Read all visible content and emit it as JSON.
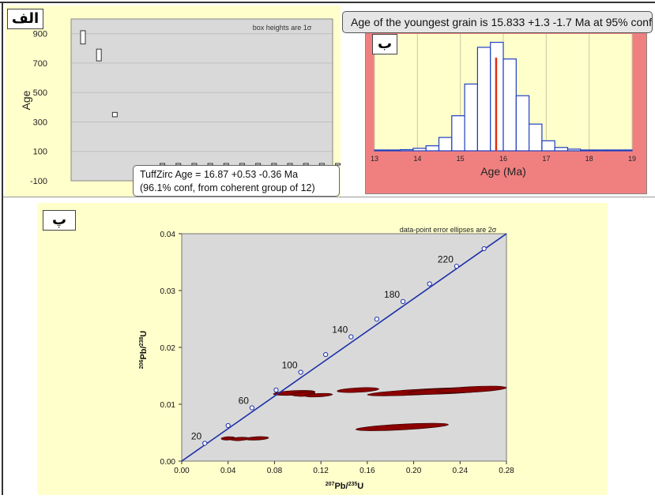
{
  "chart_data": [
    {
      "type": "scatter",
      "panel_label": "الف",
      "note": "box heights are 1σ",
      "ylabel": "Age",
      "ylim": [
        -100,
        1000
      ],
      "y_ticks": [
        "900",
        "700",
        "500",
        "300",
        "100",
        "-100"
      ],
      "grid": true,
      "boxes": [
        {
          "index": 1,
          "value": 875,
          "err": 45
        },
        {
          "index": 2,
          "value": 755,
          "err": 40
        },
        {
          "index": 3,
          "value": 350,
          "err": 15
        },
        {
          "index": 4,
          "value": 17,
          "err": 1
        },
        {
          "index": 5,
          "value": 17,
          "err": 1
        },
        {
          "index": 6,
          "value": 17,
          "err": 1
        },
        {
          "index": 7,
          "value": 17,
          "err": 1
        },
        {
          "index": 8,
          "value": 17,
          "err": 1
        },
        {
          "index": 9,
          "value": 17,
          "err": 1
        },
        {
          "index": 10,
          "value": 17,
          "err": 1
        },
        {
          "index": 11,
          "value": 17,
          "err": 1
        },
        {
          "index": 12,
          "value": 17,
          "err": 1
        },
        {
          "index": 13,
          "value": 17,
          "err": 1
        },
        {
          "index": 14,
          "value": 17,
          "err": 1
        },
        {
          "index": 15,
          "value": 17,
          "err": 1
        }
      ],
      "result_line1": "TuffZirc Age = 16.87  +0.53  -0.36  Ma",
      "result_line2": "(96.1% conf, from coherent group of 12)"
    },
    {
      "type": "bar",
      "panel_label": "ب",
      "banner": "Age of the youngest grain is 15.833 +1.3 -1.7 Ma at 95% conf.",
      "xlabel": "Age (Ma)",
      "xlim": [
        13,
        19
      ],
      "x_ticks": [
        "13",
        "14",
        "15",
        "16",
        "17",
        "18",
        "19"
      ],
      "bin_width": 0.3,
      "bins": [
        {
          "x": 13.0,
          "count": 0.5
        },
        {
          "x": 13.3,
          "count": 0.5
        },
        {
          "x": 13.6,
          "count": 0.7
        },
        {
          "x": 13.9,
          "count": 1.5
        },
        {
          "x": 14.2,
          "count": 3
        },
        {
          "x": 14.5,
          "count": 8
        },
        {
          "x": 14.8,
          "count": 21
        },
        {
          "x": 15.1,
          "count": 40
        },
        {
          "x": 15.4,
          "count": 62
        },
        {
          "x": 15.7,
          "count": 65
        },
        {
          "x": 16.0,
          "count": 55
        },
        {
          "x": 16.3,
          "count": 33
        },
        {
          "x": 16.6,
          "count": 16
        },
        {
          "x": 16.9,
          "count": 6
        },
        {
          "x": 17.2,
          "count": 2
        },
        {
          "x": 17.5,
          "count": 1
        },
        {
          "x": 17.8,
          "count": 0.5
        },
        {
          "x": 18.1,
          "count": 0.5
        },
        {
          "x": 18.4,
          "count": 0.5
        },
        {
          "x": 18.7,
          "count": 0.5
        }
      ],
      "ymax": 70,
      "marker_value": 15.833,
      "colors": {
        "bars": "#1f3fbf",
        "marker": "#e03010",
        "plot_bg": "#ffffcc",
        "frame_bg": "#f08080"
      }
    },
    {
      "type": "scatter",
      "panel_label": "پ",
      "note": "data-point error ellipses are 2σ",
      "xlabel_main": "Pb/",
      "xlabel_sup1": "207",
      "xlabel_sup2": "235",
      "xlabel_end": "U",
      "ylabel_main": "Pb/",
      "ylabel_sup1": "206",
      "ylabel_sup2": "238",
      "ylabel_end": "U",
      "xlim": [
        0,
        0.28
      ],
      "ylim": [
        0,
        0.04
      ],
      "x_ticks": [
        "0.00",
        "0.04",
        "0.08",
        "0.12",
        "0.16",
        "0.20",
        "0.24",
        "0.28"
      ],
      "y_ticks": [
        "0.00",
        "0.01",
        "0.02",
        "0.03",
        "0.04"
      ],
      "concordia_points": [
        {
          "x": 0.0199,
          "y": 0.00313,
          "label": "20"
        },
        {
          "x": 0.04,
          "y": 0.00625,
          "label": ""
        },
        {
          "x": 0.0606,
          "y": 0.00938,
          "label": "60"
        },
        {
          "x": 0.0814,
          "y": 0.0125,
          "label": ""
        },
        {
          "x": 0.1026,
          "y": 0.01563,
          "label": "100"
        },
        {
          "x": 0.1241,
          "y": 0.01874,
          "label": ""
        },
        {
          "x": 0.146,
          "y": 0.02186,
          "label": "140"
        },
        {
          "x": 0.1682,
          "y": 0.02497,
          "label": ""
        },
        {
          "x": 0.1908,
          "y": 0.02807,
          "label": "180"
        },
        {
          "x": 0.2137,
          "y": 0.03118,
          "label": ""
        },
        {
          "x": 0.237,
          "y": 0.03427,
          "label": "220"
        },
        {
          "x": 0.2607,
          "y": 0.03737,
          "label": ""
        }
      ],
      "ellipses": [
        {
          "x": 0.04,
          "y": 0.004,
          "rx": 0.006,
          "ry": 0.0003
        },
        {
          "x": 0.05,
          "y": 0.0039,
          "rx": 0.008,
          "ry": 0.0003
        },
        {
          "x": 0.065,
          "y": 0.004,
          "rx": 0.01,
          "ry": 0.0003
        },
        {
          "x": 0.097,
          "y": 0.012,
          "rx": 0.018,
          "ry": 0.0004
        },
        {
          "x": 0.105,
          "y": 0.0118,
          "rx": 0.01,
          "ry": 0.0004
        },
        {
          "x": 0.118,
          "y": 0.0116,
          "rx": 0.012,
          "ry": 0.0003
        },
        {
          "x": 0.152,
          "y": 0.0125,
          "rx": 0.018,
          "ry": 0.0004
        },
        {
          "x": 0.19,
          "y": 0.006,
          "rx": 0.04,
          "ry": 0.0005
        },
        {
          "x": 0.21,
          "y": 0.0122,
          "rx": 0.05,
          "ry": 0.0005
        },
        {
          "x": 0.235,
          "y": 0.0124,
          "rx": 0.04,
          "ry": 0.0005
        },
        {
          "x": 0.25,
          "y": 0.0126,
          "rx": 0.03,
          "ry": 0.0005
        }
      ],
      "colors": {
        "concordia": "#1c2fa8",
        "ellipse": "#8b0000",
        "plot_bg": "#d9d9d9",
        "frame_bg": "#ffffcc"
      }
    }
  ]
}
